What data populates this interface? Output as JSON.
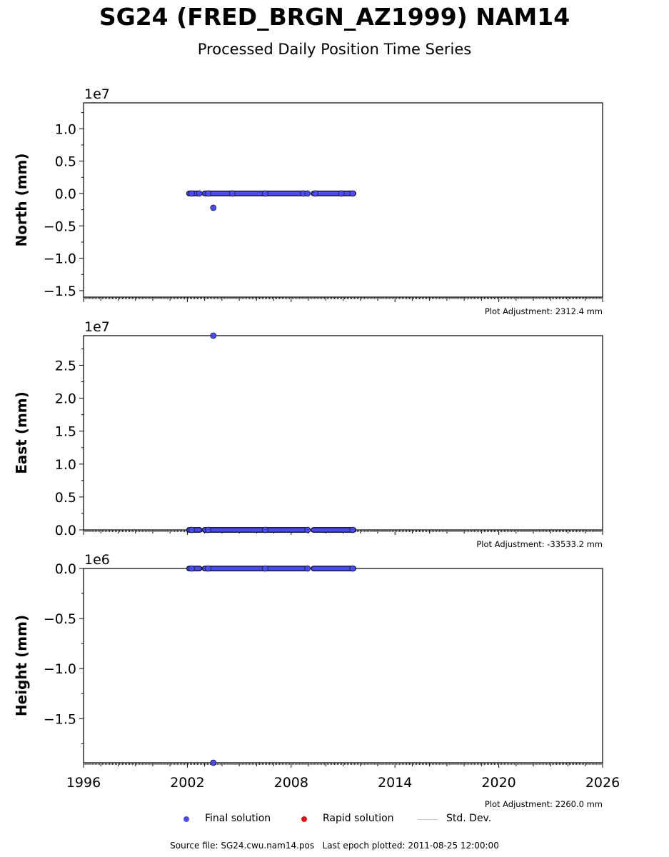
{
  "title": "SG24 (FRED_BRGN_AZ1999) NAM14",
  "subtitle": "Processed Daily Position Time Series",
  "footer": {
    "source_file": "SG24.cwu.nam14.pos",
    "source_prefix": "Source file:",
    "last_epoch_prefix": "Last epoch plotted:",
    "last_epoch": "2011-08-25 12:00:00"
  },
  "legend": {
    "final": "Final solution",
    "rapid": "Rapid solution",
    "stddev": "Std. Dev."
  },
  "colors": {
    "final": "#4b4bea",
    "rapid": "#dd1111",
    "stddev": "#cccccc",
    "marker_edge": "#1a1a40"
  },
  "chart_data": [
    {
      "type": "scatter",
      "ylabel": "North (mm)",
      "exponent_label": "1e7",
      "plot_adjustment": "Plot Adjustment: 2312.4 mm",
      "xlim": [
        1996,
        2026
      ],
      "ylim": [
        -1.6,
        1.4
      ],
      "yticks": [
        1.0,
        0.5,
        0.0,
        -0.5,
        -1.0,
        -1.5
      ],
      "ytick_labels": [
        "1.0",
        "0.5",
        "0.0",
        "−0.5",
        "−1.0",
        "−1.5"
      ],
      "show_xtick_labels": false,
      "baseline": 0.0,
      "segments": [
        [
          2002.1,
          2002.7
        ],
        [
          2003.0,
          2006.5
        ],
        [
          2006.6,
          2008.8
        ],
        [
          2009.3,
          2011.6
        ]
      ],
      "points": [
        {
          "x": 2002.25,
          "y": 0.0
        },
        {
          "x": 2002.7,
          "y": 0.0
        },
        {
          "x": 2003.2,
          "y": 0.0
        },
        {
          "x": 2004.6,
          "y": 0.0
        },
        {
          "x": 2006.5,
          "y": 0.0
        },
        {
          "x": 2008.7,
          "y": 0.0
        },
        {
          "x": 2008.95,
          "y": 0.0
        },
        {
          "x": 2009.4,
          "y": 0.0
        },
        {
          "x": 2010.9,
          "y": 0.0
        },
        {
          "x": 2011.55,
          "y": 0.0
        },
        {
          "x": 2003.5,
          "y": -0.22
        }
      ]
    },
    {
      "type": "scatter",
      "ylabel": "East (mm)",
      "exponent_label": "1e7",
      "plot_adjustment": "Plot Adjustment: -33533.2 mm",
      "xlim": [
        1996,
        2026
      ],
      "ylim": [
        0.0,
        2.95
      ],
      "yticks": [
        2.5,
        2.0,
        1.5,
        1.0,
        0.5,
        0.0
      ],
      "ytick_labels": [
        "2.5",
        "2.0",
        "1.5",
        "1.0",
        "0.5",
        "0.0"
      ],
      "show_xtick_labels": false,
      "baseline": 0.0,
      "segments": [
        [
          2002.1,
          2002.7
        ],
        [
          2003.0,
          2006.5
        ],
        [
          2006.6,
          2008.8
        ],
        [
          2009.3,
          2011.6
        ]
      ],
      "points": [
        {
          "x": 2002.25,
          "y": 0.0
        },
        {
          "x": 2003.2,
          "y": 0.0
        },
        {
          "x": 2006.5,
          "y": 0.0
        },
        {
          "x": 2008.95,
          "y": 0.0
        },
        {
          "x": 2011.55,
          "y": 0.0
        },
        {
          "x": 2003.5,
          "y": 2.95
        }
      ]
    },
    {
      "type": "scatter",
      "ylabel": "Height (mm)",
      "exponent_label": "1e6",
      "plot_adjustment": "Plot Adjustment: 2260.0 mm",
      "xlim": [
        1996,
        2026
      ],
      "ylim": [
        -1.94,
        0.0
      ],
      "yticks": [
        0.0,
        -0.5,
        -1.0,
        -1.5
      ],
      "ytick_labels": [
        "0.0",
        "−0.5",
        "−1.0",
        "−1.5"
      ],
      "xticks": [
        1996,
        2002,
        2008,
        2014,
        2020,
        2026
      ],
      "xtick_labels": [
        "1996",
        "2002",
        "2008",
        "2014",
        "2020",
        "2026"
      ],
      "show_xtick_labels": true,
      "baseline": 0.0,
      "segments": [
        [
          2002.1,
          2002.7
        ],
        [
          2003.0,
          2006.5
        ],
        [
          2006.6,
          2008.8
        ],
        [
          2009.3,
          2011.6
        ]
      ],
      "points": [
        {
          "x": 2002.25,
          "y": 0.0
        },
        {
          "x": 2003.2,
          "y": 0.0
        },
        {
          "x": 2006.5,
          "y": 0.0
        },
        {
          "x": 2008.95,
          "y": 0.0
        },
        {
          "x": 2011.55,
          "y": 0.0
        },
        {
          "x": 2003.5,
          "y": -1.94
        }
      ]
    }
  ]
}
